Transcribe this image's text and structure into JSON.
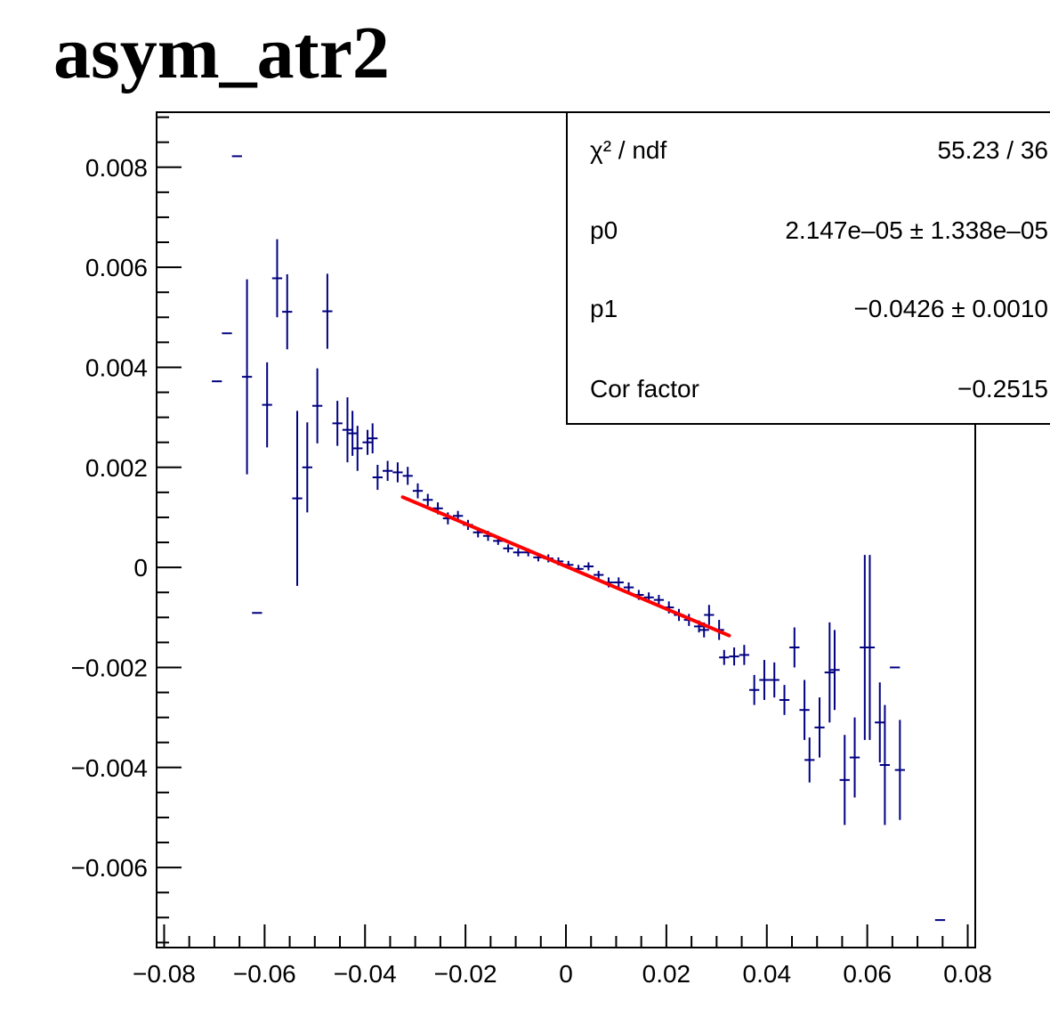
{
  "title": "asym_atr2",
  "colors": {
    "points": "#000080",
    "fit": "#ff0000",
    "frame": "#000000"
  },
  "stats": {
    "rows": [
      {
        "label": "χ² / ndf",
        "value": "55.23 / 36"
      },
      {
        "label": "p0",
        "value": "2.147e–05 ± 1.338e–05"
      },
      {
        "label": "p1",
        "value": "−0.0426 ± 0.0010"
      },
      {
        "label": "Cor factor",
        "value": "−0.2515"
      }
    ]
  },
  "chart_data": {
    "type": "scatter",
    "title": "asym_atr2",
    "xlim": [
      -0.0815,
      0.0815
    ],
    "ylim": [
      -0.0076,
      0.0091
    ],
    "x_ticks": [
      -0.08,
      -0.06,
      -0.04,
      -0.02,
      0,
      0.02,
      0.04,
      0.06,
      0.08
    ],
    "x_tick_labels": [
      "−0.08",
      "−0.06",
      "−0.04",
      "−0.02",
      "0",
      "0.02",
      "0.04",
      "0.06",
      "0.08"
    ],
    "y_ticks": [
      -0.006,
      -0.004,
      -0.002,
      0,
      0.002,
      0.004,
      0.006,
      0.008
    ],
    "y_tick_labels": [
      "−0.006",
      "−0.004",
      "−0.002",
      "0",
      "0.002",
      "0.004",
      "0.006",
      "0.008"
    ],
    "grid": false,
    "bin_half_width": 0.001,
    "points": [
      [
        -0.0695,
        0.00372,
        0.0
      ],
      [
        -0.0675,
        0.00468,
        0.0
      ],
      [
        -0.0655,
        0.00822,
        0.0
      ],
      [
        -0.0635,
        0.00381,
        0.00195
      ],
      [
        -0.0615,
        -0.00091,
        0.0
      ],
      [
        -0.0595,
        0.00325,
        0.00085
      ],
      [
        -0.0575,
        0.00578,
        0.00078
      ],
      [
        -0.0555,
        0.00511,
        0.00075
      ],
      [
        -0.0535,
        0.00138,
        0.00175
      ],
      [
        -0.0515,
        0.002,
        0.0009
      ],
      [
        -0.0495,
        0.00323,
        0.00075
      ],
      [
        -0.0475,
        0.00512,
        0.00075
      ],
      [
        -0.0455,
        0.00288,
        0.00045
      ],
      [
        -0.0435,
        0.00275,
        0.00065
      ],
      [
        -0.0425,
        0.00268,
        0.00045
      ],
      [
        -0.0415,
        0.00238,
        0.00045
      ],
      [
        -0.0395,
        0.0025,
        0.00025
      ],
      [
        -0.0385,
        0.00258,
        0.0003
      ],
      [
        -0.0375,
        0.0018,
        0.00025
      ],
      [
        -0.0355,
        0.00193,
        0.0002
      ],
      [
        -0.0335,
        0.0019,
        0.0002
      ],
      [
        -0.0315,
        0.00183,
        0.00018
      ],
      [
        -0.0295,
        0.00153,
        0.00015
      ],
      [
        -0.0275,
        0.00135,
        0.00012
      ],
      [
        -0.0255,
        0.00118,
        0.00012
      ],
      [
        -0.0235,
        0.00098,
        0.00012
      ],
      [
        -0.0215,
        0.00103,
        0.0001
      ],
      [
        -0.0195,
        0.00085,
        0.0001
      ],
      [
        -0.0175,
        0.0007,
        0.0001
      ],
      [
        -0.0155,
        0.00063,
        0.0001
      ],
      [
        -0.0135,
        0.00053,
        8e-05
      ],
      [
        -0.0115,
        0.00038,
        8e-05
      ],
      [
        -0.0095,
        0.0003,
        8e-05
      ],
      [
        -0.0075,
        0.0003,
        8e-05
      ],
      [
        -0.0055,
        0.0002,
        8e-05
      ],
      [
        -0.0035,
        0.00018,
        8e-05
      ],
      [
        -0.0015,
        0.00012,
        8e-05
      ],
      [
        0.0005,
        5e-05,
        8e-05
      ],
      [
        0.0025,
        -3e-05,
        8e-05
      ],
      [
        0.0045,
        2e-05,
        8e-05
      ],
      [
        0.0065,
        -0.00015,
        8e-05
      ],
      [
        0.0085,
        -0.0003,
        0.0001
      ],
      [
        0.0105,
        -0.0003,
        0.0001
      ],
      [
        0.0125,
        -0.0004,
        0.0001
      ],
      [
        0.0145,
        -0.00055,
        0.0001
      ],
      [
        0.0165,
        -0.0006,
        0.0001
      ],
      [
        0.0185,
        -0.00065,
        0.0001
      ],
      [
        0.0205,
        -0.0008,
        0.00012
      ],
      [
        0.0225,
        -0.00095,
        0.00012
      ],
      [
        0.0245,
        -0.00105,
        0.00012
      ],
      [
        0.0265,
        -0.00118,
        0.00012
      ],
      [
        0.0275,
        -0.00125,
        0.00015
      ],
      [
        0.0285,
        -0.00095,
        0.0002
      ],
      [
        0.0305,
        -0.00125,
        0.0002
      ],
      [
        0.0315,
        -0.0018,
        0.00015
      ],
      [
        0.0335,
        -0.00178,
        0.00018
      ],
      [
        0.0355,
        -0.00175,
        0.0002
      ],
      [
        0.0375,
        -0.00245,
        0.0003
      ],
      [
        0.0395,
        -0.00225,
        0.0004
      ],
      [
        0.0415,
        -0.00225,
        0.00035
      ],
      [
        0.0435,
        -0.00265,
        0.0003
      ],
      [
        0.0455,
        -0.0016,
        0.0004
      ],
      [
        0.0475,
        -0.00285,
        0.0006
      ],
      [
        0.0485,
        -0.00385,
        0.00045
      ],
      [
        0.0505,
        -0.0032,
        0.0006
      ],
      [
        0.0525,
        -0.0021,
        0.001
      ],
      [
        0.0535,
        -0.00205,
        0.0008
      ],
      [
        0.0555,
        -0.00425,
        0.0009
      ],
      [
        0.0575,
        -0.0038,
        0.0008
      ],
      [
        0.0595,
        -0.0016,
        0.00185
      ],
      [
        0.0605,
        -0.0016,
        0.00185
      ],
      [
        0.0625,
        -0.0031,
        0.0008
      ],
      [
        0.0635,
        -0.00395,
        0.0012
      ],
      [
        0.0655,
        -0.002,
        0.0
      ],
      [
        0.0665,
        -0.00405,
        0.001
      ],
      [
        0.0745,
        -0.00705,
        0.0
      ]
    ],
    "fit": {
      "function": "p0 + p1*x",
      "p0": 2.147e-05,
      "p1": -0.0426,
      "x_range": [
        -0.0325,
        0.0325
      ]
    }
  }
}
